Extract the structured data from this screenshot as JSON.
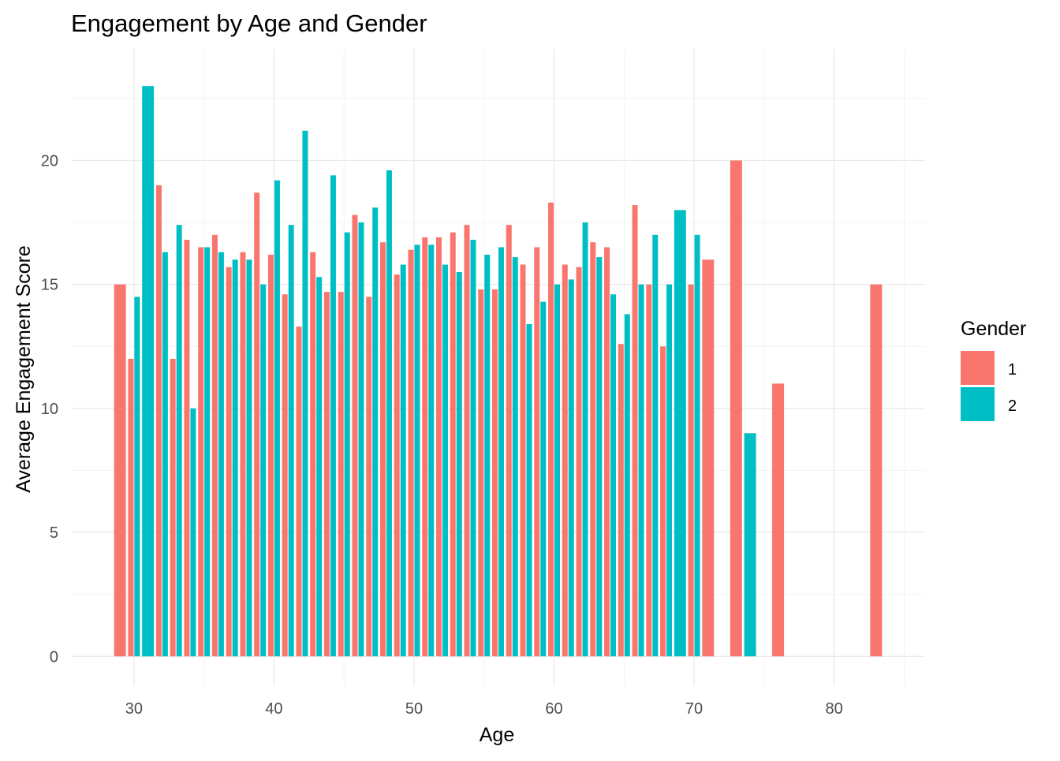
{
  "chart_data": {
    "type": "bar",
    "title": "Engagement by Age and Gender",
    "xlabel": "Age",
    "ylabel": "Average Engagement Score",
    "xlim": [
      25.5,
      86.5
    ],
    "ylim": [
      -1.2,
      24.5
    ],
    "x_ticks": [
      30,
      40,
      50,
      60,
      70,
      80
    ],
    "y_ticks": [
      0,
      5,
      10,
      15,
      20
    ],
    "grid": true,
    "legend": {
      "title": "Gender",
      "position": "right"
    },
    "series": [
      {
        "name": "1",
        "color": "#F8766D",
        "x": [
          29,
          30,
          32,
          33,
          34,
          35,
          36,
          37,
          38,
          39,
          40,
          41,
          42,
          43,
          44,
          45,
          46,
          47,
          48,
          49,
          50,
          51,
          52,
          53,
          54,
          55,
          56,
          57,
          58,
          59,
          60,
          61,
          62,
          63,
          64,
          65,
          66,
          67,
          68,
          70,
          71,
          73,
          76,
          83
        ],
        "values": [
          15.0,
          12.0,
          19.0,
          12.0,
          16.8,
          16.5,
          17.0,
          15.7,
          16.3,
          18.7,
          16.2,
          14.6,
          13.3,
          16.3,
          14.7,
          14.7,
          17.8,
          14.5,
          16.7,
          15.4,
          16.4,
          16.9,
          16.9,
          17.1,
          17.4,
          14.8,
          14.8,
          17.4,
          15.8,
          16.5,
          18.3,
          15.8,
          15.7,
          16.7,
          16.5,
          12.6,
          18.2,
          15.0,
          12.5,
          15.0,
          16.0,
          20.0,
          11.0,
          15.0
        ]
      },
      {
        "name": "2",
        "color": "#00BFC4",
        "x": [
          30,
          31,
          32,
          33,
          34,
          35,
          36,
          37,
          38,
          39,
          40,
          41,
          42,
          43,
          44,
          45,
          46,
          47,
          48,
          49,
          50,
          51,
          52,
          53,
          54,
          55,
          56,
          57,
          58,
          59,
          60,
          61,
          62,
          63,
          64,
          65,
          66,
          67,
          68,
          69,
          70,
          74
        ],
        "values": [
          14.5,
          23.0,
          16.3,
          17.4,
          10.0,
          16.5,
          16.3,
          16.0,
          16.0,
          15.0,
          19.2,
          17.4,
          21.2,
          15.3,
          19.4,
          17.1,
          17.5,
          18.1,
          19.6,
          15.8,
          16.6,
          16.6,
          15.8,
          15.5,
          16.8,
          16.2,
          16.5,
          16.1,
          13.4,
          14.3,
          15.0,
          15.2,
          17.5,
          16.1,
          14.6,
          13.8,
          15.0,
          17.0,
          15.0,
          18.0,
          17.0,
          9.0
        ]
      }
    ]
  }
}
